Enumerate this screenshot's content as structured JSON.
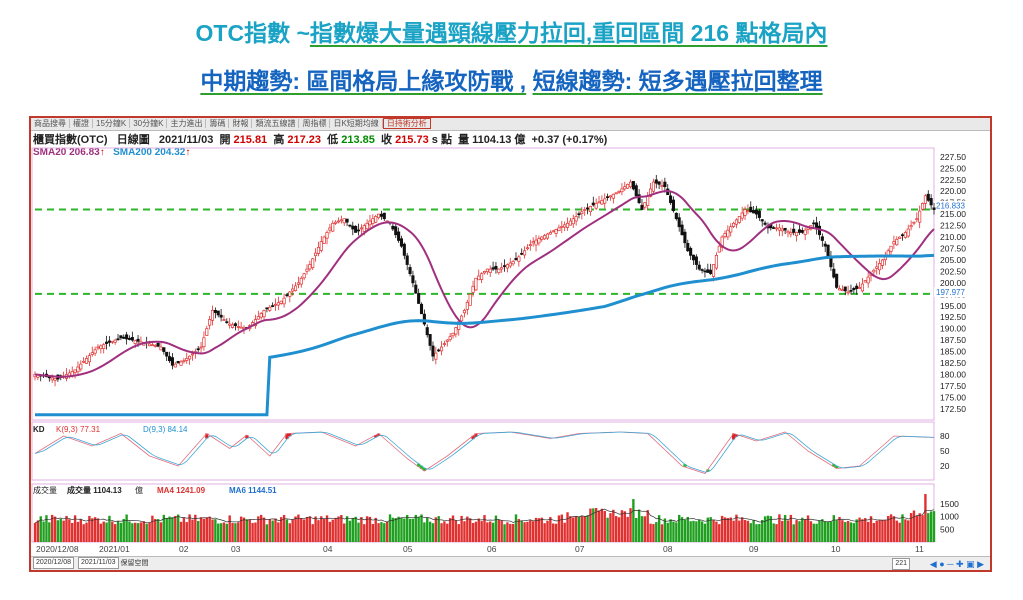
{
  "headline1": {
    "prefix": "OTC指數 ~",
    "text": "指數爆大量遇頸線壓力拉回,重回區間 216 點格局內"
  },
  "headline2": {
    "left": "中期趨勢: 區間格局上緣攻防戰 ,",
    "right": "短線趨勢: 短多遇壓拉回整理"
  },
  "colors": {
    "headline1": "#1ba3c6",
    "headline2": "#1565c0",
    "underline": "#2e9e2e",
    "up": "#e03030",
    "down": "#111111",
    "sma20": "#a0307f",
    "sma200": "#1f8fd0",
    "dash": "#2db52d"
  },
  "tabs": [
    "商品搜尋",
    "權證",
    "15分鐘K",
    "30分鐘K",
    "主力進出",
    "籌碼",
    "財報",
    "類流五線譜",
    "周指標",
    "日K短期均線",
    "日持術分析"
  ],
  "info": {
    "name": "櫃買指數(OTC)",
    "period": "日線圖",
    "date": "2021/11/03",
    "open_label": "開",
    "open": "215.81",
    "high_label": "高",
    "high": "217.23",
    "low_label": "低",
    "low": "213.85",
    "close_label": "收",
    "close": "215.73",
    "unit": "s 點",
    "vol_label": "量",
    "vol": "1104.13 億",
    "change": "+0.37 (+0.17%)"
  },
  "sma": {
    "sma20": "SMA20 206.83",
    "sma200": "SMA200 204.32"
  },
  "kd": {
    "label": "KD",
    "k": "K(9,3) 77.31",
    "d": "D(9,3) 84.14",
    "ticks": [
      "80",
      "50",
      "20"
    ]
  },
  "volume": {
    "label": "成交量",
    "v": "成交量 1104.13",
    "unit": "億",
    "ma4": "MA4 1241.09",
    "ma6": "MA6 1144.51",
    "ticks": [
      "1500",
      "1000",
      "500"
    ]
  },
  "bottom": {
    "from": "2020/12/08",
    "to": "2021/11/03",
    "keep": "保留空間",
    "count": "221"
  },
  "chart_data": {
    "type": "candlestick",
    "title": "櫃買指數(OTC) 日線圖",
    "x_labels": [
      "2020/12/08",
      "2021/01",
      "02",
      "03",
      "04",
      "05",
      "06",
      "07",
      "08",
      "09",
      "10",
      "11"
    ],
    "y_ticks": [
      227.5,
      225,
      222.5,
      220,
      217.5,
      215,
      212.5,
      210,
      207.5,
      205,
      202.5,
      200,
      197.5,
      195,
      192.5,
      190,
      187.5,
      185,
      182.5,
      180,
      177.5,
      175,
      172.5
    ],
    "ylim": [
      170.5,
      229
    ],
    "price_labels": [
      "216.833",
      "197.977"
    ],
    "resistance_lines": [
      216,
      197.6
    ],
    "anchors": [
      [
        0,
        180
      ],
      [
        8,
        179
      ],
      [
        14,
        181
      ],
      [
        22,
        186
      ],
      [
        30,
        188
      ],
      [
        38,
        187
      ],
      [
        44,
        186
      ],
      [
        48,
        182
      ],
      [
        52,
        183
      ],
      [
        58,
        186
      ],
      [
        62,
        194
      ],
      [
        68,
        191
      ],
      [
        74,
        190
      ],
      [
        80,
        194
      ],
      [
        86,
        196
      ],
      [
        92,
        200
      ],
      [
        96,
        204
      ],
      [
        100,
        209
      ],
      [
        104,
        213
      ],
      [
        108,
        214
      ],
      [
        112,
        211
      ],
      [
        116,
        213
      ],
      [
        120,
        215
      ],
      [
        124,
        213
      ],
      [
        128,
        208
      ],
      [
        132,
        200
      ],
      [
        136,
        191
      ],
      [
        139,
        184
      ],
      [
        142,
        186
      ],
      [
        146,
        189
      ],
      [
        150,
        194
      ],
      [
        154,
        201
      ],
      [
        158,
        203
      ],
      [
        162,
        203
      ],
      [
        168,
        205
      ],
      [
        174,
        209
      ],
      [
        180,
        211
      ],
      [
        186,
        213
      ],
      [
        192,
        216
      ],
      [
        198,
        218
      ],
      [
        204,
        220
      ],
      [
        208,
        222
      ],
      [
        212,
        216
      ],
      [
        216,
        222
      ],
      [
        220,
        221
      ],
      [
        224,
        214
      ],
      [
        228,
        207
      ],
      [
        232,
        203
      ],
      [
        236,
        202
      ],
      [
        240,
        210
      ],
      [
        244,
        213
      ],
      [
        248,
        216
      ],
      [
        252,
        215
      ],
      [
        256,
        212
      ],
      [
        260,
        212
      ],
      [
        264,
        211
      ],
      [
        268,
        211
      ],
      [
        272,
        213
      ],
      [
        276,
        208
      ],
      [
        280,
        199
      ],
      [
        284,
        198
      ],
      [
        288,
        199
      ],
      [
        292,
        202
      ],
      [
        296,
        205
      ],
      [
        300,
        209
      ],
      [
        304,
        211
      ],
      [
        308,
        214
      ],
      [
        311,
        219
      ],
      [
        314,
        216
      ]
    ],
    "kd_anchors_k": [
      [
        0,
        45
      ],
      [
        10,
        80
      ],
      [
        20,
        60
      ],
      [
        30,
        85
      ],
      [
        40,
        40
      ],
      [
        50,
        20
      ],
      [
        60,
        85
      ],
      [
        68,
        55
      ],
      [
        74,
        82
      ],
      [
        82,
        40
      ],
      [
        88,
        85
      ],
      [
        100,
        88
      ],
      [
        112,
        60
      ],
      [
        120,
        85
      ],
      [
        130,
        35
      ],
      [
        136,
        10
      ],
      [
        144,
        40
      ],
      [
        154,
        85
      ],
      [
        166,
        88
      ],
      [
        180,
        75
      ],
      [
        190,
        85
      ],
      [
        204,
        88
      ],
      [
        214,
        85
      ],
      [
        226,
        20
      ],
      [
        234,
        5
      ],
      [
        244,
        85
      ],
      [
        252,
        70
      ],
      [
        262,
        88
      ],
      [
        270,
        50
      ],
      [
        280,
        15
      ],
      [
        288,
        20
      ],
      [
        300,
        80
      ],
      [
        314,
        77
      ]
    ]
  }
}
